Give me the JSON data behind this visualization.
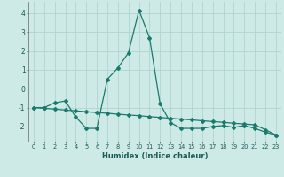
{
  "xlabel": "Humidex (Indice chaleur)",
  "x": [
    0,
    1,
    2,
    3,
    4,
    5,
    6,
    7,
    8,
    9,
    10,
    11,
    12,
    13,
    14,
    15,
    16,
    17,
    18,
    19,
    20,
    21,
    22,
    23
  ],
  "y_wavy": [
    -1.0,
    -1.0,
    -0.75,
    -0.65,
    -1.5,
    -2.1,
    -2.1,
    0.5,
    1.1,
    1.9,
    4.15,
    2.7,
    -0.8,
    -1.8,
    -2.1,
    -2.1,
    -2.1,
    -2.0,
    -1.95,
    -2.05,
    -1.95,
    -2.1,
    -2.3,
    -2.45
  ],
  "y_line": [
    -1.0,
    -1.04,
    -1.08,
    -1.13,
    -1.17,
    -1.22,
    -1.26,
    -1.3,
    -1.35,
    -1.39,
    -1.43,
    -1.48,
    -1.52,
    -1.57,
    -1.61,
    -1.65,
    -1.7,
    -1.74,
    -1.78,
    -1.83,
    -1.87,
    -1.91,
    -2.17,
    -2.45
  ],
  "line_color": "#1a7a6e",
  "bg_color": "#ceeae6",
  "grid_color": "#afd4d0",
  "ylim": [
    -2.8,
    4.6
  ],
  "yticks": [
    -2,
    -1,
    0,
    1,
    2,
    3,
    4
  ],
  "xticks": [
    0,
    1,
    2,
    3,
    4,
    5,
    6,
    7,
    8,
    9,
    10,
    11,
    12,
    13,
    14,
    15,
    16,
    17,
    18,
    19,
    20,
    21,
    22,
    23
  ],
  "marker": "D",
  "markersize": 2.0,
  "linewidth": 0.9
}
